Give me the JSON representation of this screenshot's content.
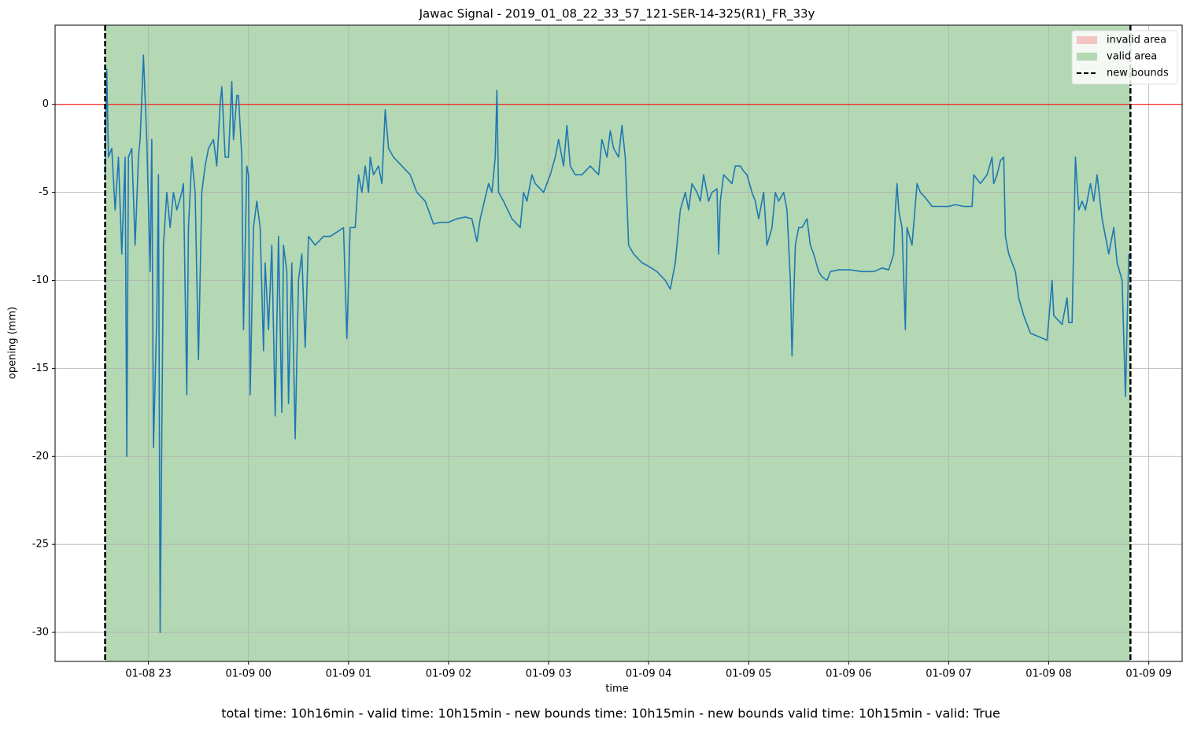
{
  "chart_data": {
    "type": "line",
    "title": "Jawac Signal - 2019_01_08_22_33_57_121-SER-14-325(R1)_FR_33y",
    "xlabel": "time",
    "ylabel": "opening (mm)",
    "x": [
      "01-08 22:34",
      "01-08 22:35",
      "01-08 22:36",
      "01-08 22:38",
      "01-08 22:40",
      "01-08 22:42",
      "01-08 22:44",
      "01-08 22:46",
      "01-08 22:47",
      "01-08 22:48",
      "01-08 22:50",
      "01-08 22:52",
      "01-08 22:54",
      "01-08 22:55",
      "01-08 22:57",
      "01-08 22:59",
      "01-08 23:01",
      "01-08 23:02",
      "01-08 23:03",
      "01-08 23:05",
      "01-08 23:06",
      "01-08 23:07",
      "01-08 23:09",
      "01-08 23:11",
      "01-08 23:13",
      "01-08 23:15",
      "01-08 23:17",
      "01-08 23:20",
      "01-08 23:21",
      "01-08 23:23",
      "01-08 23:24",
      "01-08 23:26",
      "01-08 23:28",
      "01-08 23:30",
      "01-08 23:32",
      "01-08 23:34",
      "01-08 23:36",
      "01-08 23:39",
      "01-08 23:41",
      "01-08 23:43",
      "01-08 23:44",
      "01-08 23:46",
      "01-08 23:48",
      "01-08 23:50",
      "01-08 23:51",
      "01-08 23:53",
      "01-08 23:54",
      "01-08 23:56",
      "01-08 23:57",
      "01-08 23:59",
      "01-09 00:00",
      "01-09 00:01",
      "01-09 00:03",
      "01-09 00:05",
      "01-09 00:07",
      "01-09 00:09",
      "01-09 00:10",
      "01-09 00:12",
      "01-09 00:14",
      "01-09 00:16",
      "01-09 00:18",
      "01-09 00:20",
      "01-09 00:21",
      "01-09 00:23",
      "01-09 00:24",
      "01-09 00:26",
      "01-09 00:28",
      "01-09 00:30",
      "01-09 00:32",
      "01-09 00:34",
      "01-09 00:36",
      "01-09 00:40",
      "01-09 00:45",
      "01-09 00:49",
      "01-09 00:54",
      "01-09 00:57",
      "01-09 00:59",
      "01-09 01:01",
      "01-09 01:04",
      "01-09 01:06",
      "01-09 01:08",
      "01-09 01:10",
      "01-09 01:12",
      "01-09 01:13",
      "01-09 01:15",
      "01-09 01:18",
      "01-09 01:20",
      "01-09 01:22",
      "01-09 01:24",
      "01-09 01:27",
      "01-09 01:32",
      "01-09 01:37",
      "01-09 01:41",
      "01-09 01:46",
      "01-09 01:51",
      "01-09 01:55",
      "01-09 02:00",
      "01-09 02:05",
      "01-09 02:10",
      "01-09 02:14",
      "01-09 02:17",
      "01-09 02:19",
      "01-09 02:24",
      "01-09 02:26",
      "01-09 02:28",
      "01-09 02:29",
      "01-09 02:30",
      "01-09 02:33",
      "01-09 02:38",
      "01-09 02:43",
      "01-09 02:45",
      "01-09 02:47",
      "01-09 02:50",
      "01-09 02:52",
      "01-09 02:57",
      "01-09 03:01",
      "01-09 03:04",
      "01-09 03:06",
      "01-09 03:09",
      "01-09 03:11",
      "01-09 03:13",
      "01-09 03:16",
      "01-09 03:20",
      "01-09 03:25",
      "01-09 03:30",
      "01-09 03:32",
      "01-09 03:35",
      "01-09 03:37",
      "01-09 03:39",
      "01-09 03:42",
      "01-09 03:44",
      "01-09 03:46",
      "01-09 03:48",
      "01-09 03:51",
      "01-09 03:56",
      "01-09 04:00",
      "01-09 04:05",
      "01-09 04:10",
      "01-09 04:13",
      "01-09 04:16",
      "01-09 04:19",
      "01-09 04:22",
      "01-09 04:24",
      "01-09 04:26",
      "01-09 04:29",
      "01-09 04:31",
      "01-09 04:33",
      "01-09 04:36",
      "01-09 04:38",
      "01-09 04:41",
      "01-09 04:42",
      "01-09 04:43",
      "01-09 04:45",
      "01-09 04:50",
      "01-09 04:52",
      "01-09 04:55",
      "01-09 04:57",
      "01-09 04:59",
      "01-09 05:02",
      "01-09 05:04",
      "01-09 05:06",
      "01-09 05:09",
      "01-09 05:11",
      "01-09 05:14",
      "01-09 05:16",
      "01-09 05:18",
      "01-09 05:21",
      "01-09 05:23",
      "01-09 05:25",
      "01-09 05:26",
      "01-09 05:28",
      "01-09 05:30",
      "01-09 05:32",
      "01-09 05:35",
      "01-09 05:37",
      "01-09 05:39",
      "01-09 05:42",
      "01-09 05:44",
      "01-09 05:47",
      "01-09 05:49",
      "01-09 05:54",
      "01-09 06:01",
      "01-09 06:08",
      "01-09 06:15",
      "01-09 06:20",
      "01-09 06:24",
      "01-09 06:27",
      "01-09 06:28",
      "01-09 06:29",
      "01-09 06:30",
      "01-09 06:32",
      "01-09 06:34",
      "01-09 06:35",
      "01-09 06:38",
      "01-09 06:41",
      "01-09 06:43",
      "01-09 06:46",
      "01-09 06:50",
      "01-09 06:55",
      "01-09 07:00",
      "01-09 07:04",
      "01-09 07:09",
      "01-09 07:14",
      "01-09 07:15",
      "01-09 07:19",
      "01-09 07:23",
      "01-09 07:26",
      "01-09 07:27",
      "01-09 07:29",
      "01-09 07:31",
      "01-09 07:33",
      "01-09 07:34",
      "01-09 07:36",
      "01-09 07:38",
      "01-09 07:40",
      "01-09 07:42",
      "01-09 07:45",
      "01-09 07:47",
      "01-09 07:49",
      "01-09 07:54",
      "01-09 07:59",
      "01-09 08:02",
      "01-09 08:03",
      "01-09 08:06",
      "01-09 08:08",
      "01-09 08:11",
      "01-09 08:12",
      "01-09 08:14",
      "01-09 08:16",
      "01-09 08:18",
      "01-09 08:20",
      "01-09 08:22",
      "01-09 08:25",
      "01-09 08:27",
      "01-09 08:29",
      "01-09 08:32",
      "01-09 08:34",
      "01-09 08:36",
      "01-09 08:39",
      "01-09 08:41",
      "01-09 08:44",
      "01-09 08:45",
      "01-09 08:46",
      "01-09 08:48"
    ],
    "series": [
      {
        "color": "#1f77b4",
        "values": [
          -4,
          2,
          -3,
          -2.5,
          -6,
          -3,
          -8.5,
          -3,
          -20,
          -3,
          -2.5,
          -8,
          -3,
          -2,
          2.8,
          -2,
          -9.5,
          -2,
          -19.5,
          -12,
          -4,
          -30,
          -8,
          -5,
          -7,
          -5,
          -6,
          -5,
          -4.5,
          -16.5,
          -7,
          -3,
          -5,
          -14.5,
          -5,
          -3.5,
          -2.5,
          -2,
          -3.5,
          0,
          1,
          -3,
          -3,
          1.3,
          -2,
          0.5,
          0.5,
          -3,
          -12.8,
          -3.5,
          -4,
          -16.5,
          -7,
          -5.5,
          -7,
          -14,
          -9,
          -12.8,
          -8,
          -17.7,
          -7.5,
          -17.5,
          -8,
          -9.5,
          -17,
          -9,
          -19,
          -10,
          -8.5,
          -13.8,
          -7.5,
          -8,
          -7.5,
          -7.5,
          -7.2,
          -7,
          -13.3,
          -7,
          -7,
          -4,
          -5,
          -3.5,
          -5,
          -3,
          -4,
          -3.5,
          -4.5,
          -0.3,
          -2.5,
          -3,
          -3.5,
          -4,
          -5,
          -5.5,
          -6.8,
          -6.7,
          -6.7,
          -6.5,
          -6.4,
          -6.5,
          -7.8,
          -6.5,
          -4.5,
          -5,
          -3,
          0.8,
          -5,
          -5.5,
          -6.5,
          -7,
          -5,
          -5.5,
          -4,
          -4.5,
          -5,
          -4,
          -3,
          -2,
          -3.5,
          -1.2,
          -3.5,
          -4,
          -4,
          -3.5,
          -4,
          -2,
          -3,
          -1.5,
          -2.5,
          -3,
          -1.2,
          -3,
          -8,
          -8.5,
          -9,
          -9.2,
          -9.5,
          -10,
          -10.5,
          -9,
          -6,
          -5,
          -6,
          -4.5,
          -5,
          -5.5,
          -4,
          -5.5,
          -5,
          -4.8,
          -8.5,
          -5.5,
          -4,
          -4.5,
          -3.5,
          -3.5,
          -3.8,
          -4,
          -5,
          -5.5,
          -6.5,
          -5,
          -8,
          -7,
          -5,
          -5.5,
          -5,
          -6,
          -10,
          -14.3,
          -8,
          -7,
          -7,
          -6.5,
          -8,
          -8.5,
          -9.5,
          -9.8,
          -10,
          -9.5,
          -9.4,
          -9.4,
          -9.5,
          -9.5,
          -9.3,
          -9.4,
          -8.5,
          -6,
          -4.5,
          -6,
          -7,
          -12.8,
          -7,
          -8,
          -4.5,
          -5,
          -5.3,
          -5.8,
          -5.8,
          -5.8,
          -5.7,
          -5.8,
          -5.8,
          -4,
          -4.5,
          -4,
          -3,
          -4.5,
          -4,
          -3.2,
          -3,
          -7.5,
          -8.5,
          -9,
          -9.5,
          -11,
          -12,
          -12.5,
          -13,
          -13.2,
          -13.4,
          -10,
          -12,
          -12.3,
          -12.5,
          -11,
          -12.4,
          -12.4,
          -3,
          -6,
          -5.5,
          -6,
          -4.5,
          -5.5,
          -4,
          -6.5,
          -7.5,
          -8.5,
          -7,
          -9,
          -10,
          -13.3,
          -16.6,
          -8.5
        ]
      }
    ],
    "xlim": [
      "01-08 22:04",
      "01-09 09:20"
    ],
    "xticks": [
      "01-08 23",
      "01-09 00",
      "01-09 01",
      "01-09 02",
      "01-09 03",
      "01-09 04",
      "01-09 05",
      "01-09 06",
      "01-09 07",
      "01-09 08",
      "01-09 09"
    ],
    "ylim": [
      -31.65,
      4.5
    ],
    "yticks": [
      0,
      -5,
      -10,
      -15,
      -20,
      -25,
      -30
    ],
    "grid": true,
    "legend": "upper right",
    "invalid_area": {
      "name": "invalid area",
      "color": "#f2c4c4"
    },
    "valid_area": {
      "name": "valid area",
      "color": "#b3d8b3",
      "x": [
        "01-08 22:34",
        "01-09 08:49"
      ]
    },
    "bounds": {
      "name": "new bounds",
      "color": "#000000",
      "x": [
        "01-08 22:34",
        "01-09 08:49"
      ]
    },
    "hline": {
      "value": 0,
      "color": "#ff0000"
    }
  },
  "caption": "total time: 10h16min - valid time: 10h15min - new bounds time: 10h15min - new bounds valid time: 10h15min - valid: True"
}
